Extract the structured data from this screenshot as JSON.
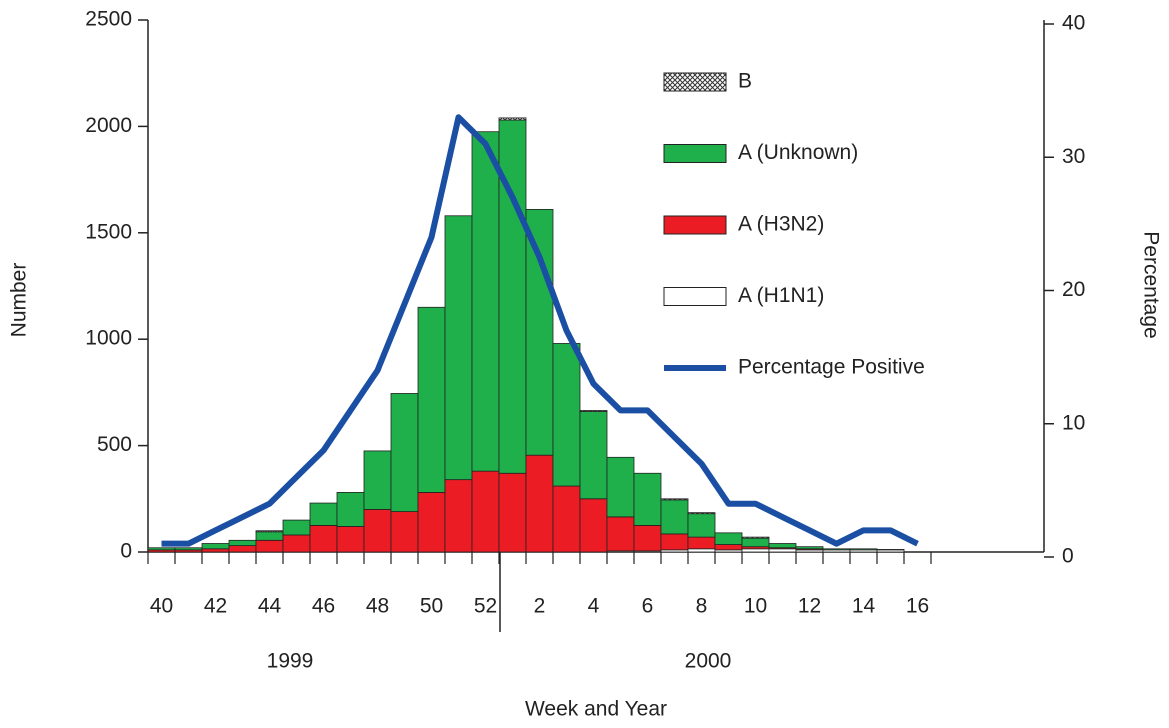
{
  "chart_data": {
    "type": "bar",
    "stacked": true,
    "x_label": "Week and Year",
    "y_label": "Number",
    "y2_label": "Percentage",
    "year_labels": [
      "1999",
      "2000"
    ],
    "categories": [
      "40",
      null,
      "42",
      null,
      "44",
      null,
      "46",
      null,
      "48",
      null,
      "50",
      null,
      "52",
      null,
      "2",
      null,
      "4",
      null,
      "6",
      null,
      "8",
      null,
      "10",
      null,
      "12",
      null,
      "14",
      null,
      "16"
    ],
    "series": [
      {
        "name": "B",
        "color": "#555555",
        "hatch": true,
        "values": [
          0,
          0,
          0,
          0,
          5,
          0,
          0,
          0,
          0,
          0,
          0,
          0,
          0,
          10,
          0,
          0,
          5,
          0,
          0,
          5,
          5,
          0,
          5,
          0,
          0,
          0,
          0,
          0,
          0
        ]
      },
      {
        "name": "A (Unknown)",
        "color": "#1fb04b",
        "values": [
          10,
          10,
          25,
          25,
          40,
          70,
          105,
          160,
          275,
          555,
          870,
          1240,
          1595,
          1660,
          1155,
          670,
          410,
          280,
          245,
          160,
          110,
          55,
          40,
          20,
          10,
          5,
          5,
          2,
          0
        ]
      },
      {
        "name": "A (H3N2)",
        "color": "#ec1c24",
        "values": [
          10,
          10,
          15,
          30,
          55,
          80,
          125,
          120,
          200,
          190,
          280,
          340,
          380,
          370,
          455,
          310,
          250,
          160,
          120,
          75,
          55,
          25,
          10,
          5,
          5,
          0,
          0,
          0,
          0
        ]
      },
      {
        "name": "A (H1N1)",
        "color": "#ffffff",
        "values": [
          0,
          0,
          0,
          0,
          0,
          0,
          0,
          0,
          0,
          0,
          0,
          0,
          0,
          0,
          0,
          0,
          0,
          5,
          5,
          10,
          15,
          10,
          15,
          15,
          10,
          10,
          10,
          10,
          0
        ]
      },
      {
        "name": "Percentage Positive",
        "color": "#1a4fa3",
        "type": "line",
        "axis": "y2",
        "values": [
          1,
          1,
          2,
          3,
          4,
          6,
          8,
          11,
          14,
          19,
          24,
          33,
          31,
          27,
          22.5,
          17,
          13,
          11,
          11,
          9,
          7,
          4,
          4,
          3,
          2,
          1,
          2,
          2,
          1
        ]
      }
    ],
    "ylim": [
      0,
      2500
    ],
    "yticks": [
      0,
      500,
      1000,
      1500,
      2000,
      2500
    ],
    "y2lim": [
      0,
      40
    ],
    "y2ticks": [
      0,
      10,
      20,
      30,
      40
    ],
    "legend": "upper right"
  }
}
